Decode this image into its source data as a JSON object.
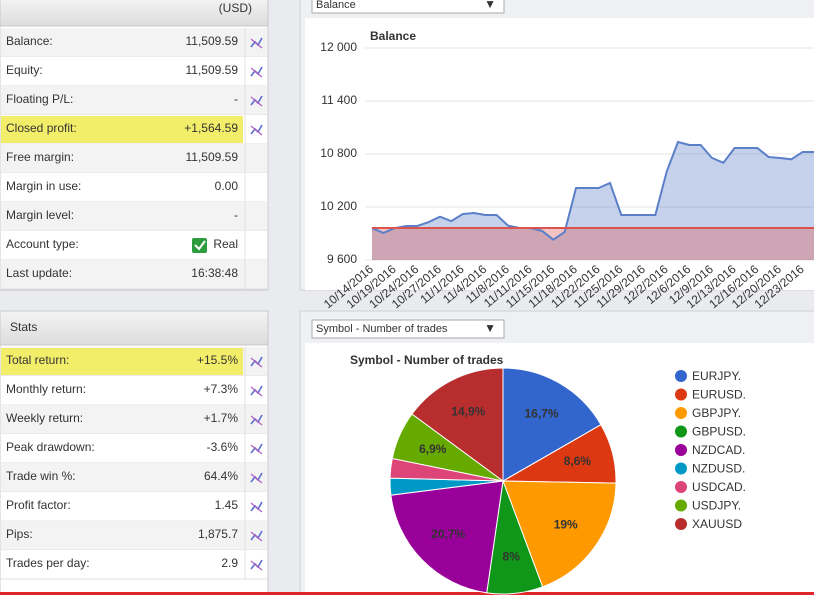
{
  "account": {
    "currency": "(USD)",
    "rows": [
      {
        "label": "Balance:",
        "value": "11,509.59"
      },
      {
        "label": "Equity:",
        "value": "11,509.59"
      },
      {
        "label": "Floating P/L:",
        "value": "-"
      },
      {
        "label": "Closed profit:",
        "value": "+1,564.59",
        "highlight": true,
        "color": "#3a8a2a"
      },
      {
        "label": "Free margin:",
        "value": "11,509.59"
      },
      {
        "label": "Margin in use:",
        "value": "0.00"
      },
      {
        "label": "Margin level:",
        "value": "-"
      },
      {
        "label": "Account type:",
        "value": "Real"
      },
      {
        "label": "Last update:",
        "value": "16:38:48"
      }
    ]
  },
  "stats": {
    "title": "Stats",
    "rows": [
      {
        "label": "Total return:",
        "value": "+15.5%",
        "highlight": true,
        "color": "#3a8a2a"
      },
      {
        "label": "Monthly return:",
        "value": "+7.3%",
        "color": "#3a8a2a"
      },
      {
        "label": "Weekly return:",
        "value": "+1.7%",
        "color": "#3a8a2a"
      },
      {
        "label": "Peak drawdown:",
        "value": "-3.6%",
        "color": "#c0392b"
      },
      {
        "label": "Trade win %:",
        "value": "64.4%",
        "color": "#3a8a2a"
      },
      {
        "label": "Profit factor:",
        "value": "1.45",
        "color": "#3a8a2a"
      },
      {
        "label": "Pips:",
        "value": "1,875.7"
      },
      {
        "label": "Trades per day:",
        "value": "2.9"
      }
    ]
  },
  "chart_data": [
    {
      "type": "line",
      "selector": "Balance",
      "title": "Balance",
      "categories": [
        "10/14/2016",
        null,
        "10/19/2016",
        null,
        "10/24/2016",
        null,
        "10/27/2016",
        null,
        "11/1/2016",
        null,
        "11/4/2016",
        null,
        "11/8/2016",
        null,
        "11/11/2016",
        null,
        "11/15/2016",
        null,
        "11/18/2016",
        null,
        "11/22/2016",
        null,
        "11/25/2016",
        null,
        "11/29/2016",
        null,
        "12/2/2016",
        null,
        "12/6/2016",
        null,
        "12/9/2016",
        null,
        "12/13/2016",
        null,
        "12/16/2016",
        null,
        "12/20/2016",
        null,
        "12/23/2016",
        null
      ],
      "values": [
        9962,
        9906,
        9960,
        9985,
        9985,
        10030,
        10090,
        10040,
        10120,
        10132,
        10110,
        10109,
        9990,
        9962,
        9962,
        9930,
        9830,
        9917,
        10415,
        10415,
        10415,
        10472,
        10109,
        10109,
        10109,
        10109,
        10600,
        10936,
        10902,
        10902,
        10755,
        10700,
        10868,
        10868,
        10868,
        10766,
        10755,
        10740,
        10823,
        10823
      ],
      "color": "#5b7fc9",
      "reference_line": 9962,
      "reference_color": "#d9534f",
      "ylim": [
        9600,
        12000
      ],
      "yticks": [
        {
          "value": 9600,
          "label": "9 600"
        },
        {
          "value": 10200,
          "label": "10 200"
        },
        {
          "value": 10800,
          "label": "10 800"
        },
        {
          "value": 11400,
          "label": "11 400"
        },
        {
          "value": 12000,
          "label": "12 000"
        }
      ],
      "grid": true
    },
    {
      "type": "pie",
      "selector": "Symbol - Number of trades",
      "title": "Symbol - Number of trades",
      "categories": [
        "EURJPY.",
        "EURUSD.",
        "GBPJPY.",
        "GBPUSD.",
        "NZDCAD.",
        "NZDUSD.",
        "USDCAD.",
        "USDJPY.",
        "XAUUSD"
      ],
      "values": [
        16.7,
        8.6,
        19,
        8,
        20.7,
        2.4,
        2.8,
        6.9,
        14.9
      ],
      "value_labels": [
        "16,7%",
        "8,6%",
        "19%",
        "8%",
        "20,7%",
        null,
        null,
        "6,9%",
        "14,9%"
      ],
      "colors": [
        "#3366cc",
        "#dc3912",
        "#ff9900",
        "#109618",
        "#990099",
        "#0099c6",
        "#dd4477",
        "#66aa00",
        "#b82e2e"
      ]
    }
  ]
}
